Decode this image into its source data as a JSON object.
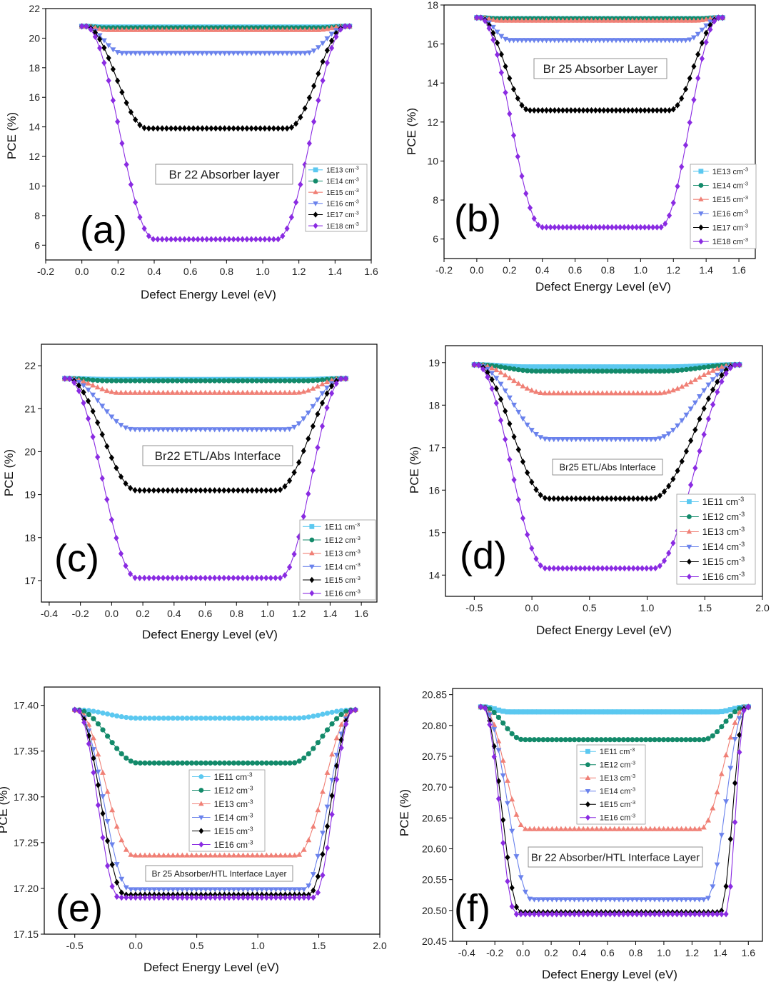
{
  "colors": {
    "s11": "#5bc8f0",
    "s12": "#138a6a",
    "s13": "#f08076",
    "s14": "#6a82ec",
    "s15": "#000000",
    "s16": "#8a2be2"
  },
  "chart_data": [
    {
      "panel": "(a)",
      "type": "line",
      "annotation": "Br 22 Absorber layer",
      "xlabel": "Defect Energy Level (eV)",
      "ylabel": "PCE (%)",
      "xlim": [
        -0.2,
        1.6
      ],
      "ylim": [
        5,
        22
      ],
      "xticks": [
        -0.2,
        0,
        0.2,
        0.4,
        0.6,
        0.8,
        1.0,
        1.2,
        1.4,
        1.6
      ],
      "yticks": [
        6,
        8,
        10,
        12,
        14,
        16,
        18,
        20,
        22
      ],
      "xtick_labels": [
        "-0.2",
        "0.0",
        "0.2",
        "0.4",
        "0.6",
        "0.8",
        "1.0",
        "1.2",
        "1.4",
        "1.6"
      ],
      "ytick_labels": [
        "6",
        "8",
        "10",
        "12",
        "14",
        "16",
        "18",
        "20",
        "22"
      ],
      "x_range": [
        0.0,
        1.48
      ],
      "n_points": 61,
      "flat_start": 0.02,
      "flat_end": 1.46,
      "series": [
        {
          "name": "1E13 cm",
          "marker": "square",
          "color_key": "s11",
          "high": 20.8,
          "low": 20.75,
          "a": 0.12,
          "b": 1.32
        },
        {
          "name": "1E14 cm",
          "marker": "circle",
          "color_key": "s12",
          "high": 20.8,
          "low": 20.7,
          "a": 0.12,
          "b": 1.32
        },
        {
          "name": "1E15 cm",
          "marker": "triangle-up",
          "color_key": "s13",
          "high": 20.8,
          "low": 20.55,
          "a": 0.14,
          "b": 1.3
        },
        {
          "name": "1E16 cm",
          "marker": "triangle-down",
          "color_key": "s14",
          "high": 20.8,
          "low": 19.0,
          "a": 0.22,
          "b": 1.24
        },
        {
          "name": "1E17 cm",
          "marker": "diamond",
          "color_key": "s15",
          "high": 20.8,
          "low": 13.9,
          "a": 0.36,
          "b": 1.14
        },
        {
          "name": "1E18 cm",
          "marker": "diamond",
          "color_key": "s16",
          "high": 20.8,
          "low": 6.4,
          "a": 0.4,
          "b": 1.08
        }
      ]
    },
    {
      "panel": "(b)",
      "type": "line",
      "annotation": "Br 25 Absorber Layer",
      "xlabel": "Defect Energy Level (eV)",
      "ylabel": "PCE (%)",
      "xlim": [
        -0.2,
        1.7
      ],
      "ylim": [
        5,
        18
      ],
      "xticks": [
        -0.2,
        0,
        0.2,
        0.4,
        0.6,
        0.8,
        1.0,
        1.2,
        1.4,
        1.6
      ],
      "yticks": [
        6,
        8,
        10,
        12,
        14,
        16,
        18
      ],
      "xtick_labels": [
        "-0.2",
        "0.0",
        "0.2",
        "0.4",
        "0.6",
        "0.8",
        "1.0",
        "1.2",
        "1.4",
        "1.6"
      ],
      "ytick_labels": [
        "6",
        "8",
        "10",
        "12",
        "14",
        "16",
        "18"
      ],
      "x_range": [
        0.0,
        1.5
      ],
      "n_points": 61,
      "flat_start": 0.02,
      "flat_end": 1.48,
      "series": [
        {
          "name": "1E13 cm",
          "marker": "square",
          "color_key": "s11",
          "high": 17.35,
          "low": 17.3,
          "a": 0.12,
          "b": 1.36
        },
        {
          "name": "1E14 cm",
          "marker": "circle",
          "color_key": "s12",
          "high": 17.35,
          "low": 17.3,
          "a": 0.12,
          "b": 1.36
        },
        {
          "name": "1E15 cm",
          "marker": "triangle-up",
          "color_key": "s13",
          "high": 17.35,
          "low": 17.2,
          "a": 0.14,
          "b": 1.34
        },
        {
          "name": "1E16 cm",
          "marker": "triangle-down",
          "color_key": "s14",
          "high": 17.35,
          "low": 16.2,
          "a": 0.2,
          "b": 1.28
        },
        {
          "name": "1E17 cm",
          "marker": "diamond",
          "color_key": "s15",
          "high": 17.35,
          "low": 12.6,
          "a": 0.32,
          "b": 1.18
        },
        {
          "name": "1E18 cm",
          "marker": "diamond",
          "color_key": "s16",
          "high": 17.35,
          "low": 6.6,
          "a": 0.4,
          "b": 1.12
        }
      ]
    },
    {
      "panel": "(c)",
      "type": "line",
      "annotation": "Br22 ETL/Abs Interface",
      "xlabel": "Defect Energy Level (eV)",
      "ylabel": "PCE (%)",
      "xlim": [
        -0.45,
        1.7
      ],
      "ylim": [
        16.5,
        22.5
      ],
      "xticks": [
        -0.4,
        -0.2,
        0,
        0.2,
        0.4,
        0.6,
        0.8,
        1.0,
        1.2,
        1.4,
        1.6
      ],
      "yticks": [
        17,
        18,
        19,
        20,
        21,
        22
      ],
      "xtick_labels": [
        "-0.4",
        "-0.2",
        "0.0",
        "0.2",
        "0.4",
        "0.6",
        "0.8",
        "1.0",
        "1.2",
        "1.4",
        "1.6"
      ],
      "ytick_labels": [
        "17",
        "18",
        "19",
        "20",
        "21",
        "22"
      ],
      "x_range": [
        -0.3,
        1.5
      ],
      "n_points": 61,
      "flat_start": -0.28,
      "flat_end": 1.48,
      "series": [
        {
          "name": "1E11 cm",
          "marker": "square",
          "color_key": "s11",
          "high": 21.7,
          "low": 21.68,
          "a": -0.02,
          "b": 1.24
        },
        {
          "name": "1E12 cm",
          "marker": "circle",
          "color_key": "s12",
          "high": 21.7,
          "low": 21.65,
          "a": -0.02,
          "b": 1.24
        },
        {
          "name": "1E13 cm",
          "marker": "triangle-up",
          "color_key": "s13",
          "high": 21.7,
          "low": 21.37,
          "a": 0.05,
          "b": 1.18
        },
        {
          "name": "1E14 cm",
          "marker": "triangle-down",
          "color_key": "s14",
          "high": 21.7,
          "low": 20.52,
          "a": 0.14,
          "b": 1.12
        },
        {
          "name": "1E15 cm",
          "marker": "diamond",
          "color_key": "s15",
          "high": 21.7,
          "low": 19.1,
          "a": 0.16,
          "b": 1.06
        },
        {
          "name": "1E16 cm",
          "marker": "diamond",
          "color_key": "s16",
          "high": 21.7,
          "low": 17.06,
          "a": 0.16,
          "b": 1.08
        }
      ]
    },
    {
      "panel": "(d)",
      "type": "line",
      "annotation": "Br25 ETL/Abs Interface",
      "xlabel": "Defect Energy Level (eV)",
      "ylabel": "PCE (%)",
      "xlim": [
        -0.75,
        2.0
      ],
      "ylim": [
        13.5,
        19.4
      ],
      "xticks": [
        -0.5,
        0,
        0.5,
        1.0,
        1.5,
        2.0
      ],
      "yticks": [
        14,
        15,
        16,
        17,
        18,
        19
      ],
      "xtick_labels": [
        "-0.5",
        "0.0",
        "0.5",
        "1.0",
        "1.5",
        "2.0"
      ],
      "ytick_labels": [
        "14",
        "15",
        "16",
        "17",
        "18",
        "19"
      ],
      "x_range": [
        -0.5,
        1.8
      ],
      "n_points": 61,
      "flat_start": -0.48,
      "flat_end": 1.78,
      "series": [
        {
          "name": "1E11 cm",
          "marker": "square",
          "color_key": "s11",
          "high": 18.95,
          "low": 18.9,
          "a": -0.05,
          "b": 1.18
        },
        {
          "name": "1E12 cm",
          "marker": "circle",
          "color_key": "s12",
          "high": 18.95,
          "low": 18.8,
          "a": 0.05,
          "b": 1.12
        },
        {
          "name": "1E13 cm",
          "marker": "triangle-up",
          "color_key": "s13",
          "high": 18.95,
          "low": 18.28,
          "a": 0.12,
          "b": 1.08
        },
        {
          "name": "1E14 cm",
          "marker": "triangle-down",
          "color_key": "s14",
          "high": 18.95,
          "low": 17.2,
          "a": 0.14,
          "b": 1.06
        },
        {
          "name": "1E15 cm",
          "marker": "diamond",
          "color_key": "s15",
          "high": 18.95,
          "low": 15.8,
          "a": 0.14,
          "b": 1.04
        },
        {
          "name": "1E16 cm",
          "marker": "diamond",
          "color_key": "s16",
          "high": 18.95,
          "low": 14.16,
          "a": 0.12,
          "b": 1.06
        }
      ]
    },
    {
      "panel": "(e)",
      "type": "line",
      "annotation": "Br 25 Absorber/HTL Interface Layer",
      "xlabel": "Defect Energy Level (eV)",
      "ylabel": "PCE (%)",
      "xlim": [
        -0.75,
        2.0
      ],
      "ylim": [
        17.15,
        17.42
      ],
      "xticks": [
        -0.5,
        0,
        0.5,
        1.0,
        1.5,
        2.0
      ],
      "yticks": [
        17.15,
        17.2,
        17.25,
        17.3,
        17.35,
        17.4
      ],
      "xtick_labels": [
        "-0.5",
        "0.0",
        "0.5",
        "1.0",
        "1.5",
        "2.0"
      ],
      "ytick_labels": [
        "17.15",
        "17.20",
        "17.25",
        "17.30",
        "17.35",
        "17.40"
      ],
      "x_range": [
        -0.5,
        1.8
      ],
      "n_points": 61,
      "flat_start": -0.48,
      "flat_end": 1.78,
      "series": [
        {
          "name": "1E11 cm",
          "marker": "circle",
          "color_key": "s11",
          "high": 17.395,
          "low": 17.386,
          "a": 0.02,
          "b": 1.3
        },
        {
          "name": "1E12 cm",
          "marker": "circle",
          "color_key": "s12",
          "high": 17.395,
          "low": 17.337,
          "a": 0.02,
          "b": 1.28
        },
        {
          "name": "1E13 cm",
          "marker": "triangle-up",
          "color_key": "s13",
          "high": 17.395,
          "low": 17.236,
          "a": -0.02,
          "b": 1.32
        },
        {
          "name": "1E14 cm",
          "marker": "triangle-down",
          "color_key": "s14",
          "high": 17.395,
          "low": 17.199,
          "a": -0.05,
          "b": 1.38
        },
        {
          "name": "1E15 cm",
          "marker": "diamond",
          "color_key": "s15",
          "high": 17.395,
          "low": 17.193,
          "a": -0.09,
          "b": 1.42
        },
        {
          "name": "1E16 cm",
          "marker": "diamond",
          "color_key": "s16",
          "high": 17.395,
          "low": 17.19,
          "a": -0.14,
          "b": 1.46
        }
      ]
    },
    {
      "panel": "(f)",
      "type": "line",
      "annotation": "Br 22 Absorber/HTL Interface Layer",
      "xlabel": "Defect Energy Level (eV)",
      "ylabel": "PCE (%)",
      "xlim": [
        -0.5,
        1.7
      ],
      "ylim": [
        20.45,
        20.86
      ],
      "xticks": [
        -0.4,
        -0.2,
        0,
        0.2,
        0.4,
        0.6,
        0.8,
        1.0,
        1.2,
        1.4,
        1.6
      ],
      "yticks": [
        20.45,
        20.5,
        20.55,
        20.6,
        20.65,
        20.7,
        20.75,
        20.8,
        20.85
      ],
      "xtick_labels": [
        "-0.4",
        "-0.2",
        "0.0",
        "0.2",
        "0.4",
        "0.6",
        "0.8",
        "1.0",
        "1.2",
        "1.4",
        "1.6"
      ],
      "ytick_labels": [
        "20.45",
        "20.50",
        "20.55",
        "20.60",
        "20.65",
        "20.70",
        "20.75",
        "20.80",
        "20.85"
      ],
      "x_range": [
        -0.3,
        1.6
      ],
      "n_points": 61,
      "flat_start": -0.28,
      "flat_end": 1.58,
      "series": [
        {
          "name": "1E11 cm",
          "marker": "square",
          "color_key": "s11",
          "high": 20.83,
          "low": 20.822,
          "a": -0.1,
          "b": 1.38
        },
        {
          "name": "1E12 cm",
          "marker": "circle",
          "color_key": "s12",
          "high": 20.83,
          "low": 20.777,
          "a": 0.0,
          "b": 1.28
        },
        {
          "name": "1E13 cm",
          "marker": "triangle-up",
          "color_key": "s13",
          "high": 20.83,
          "low": 20.632,
          "a": 0.02,
          "b": 1.26
        },
        {
          "name": "1E14 cm",
          "marker": "triangle-down",
          "color_key": "s14",
          "high": 20.83,
          "low": 20.518,
          "a": 0.06,
          "b": 1.3
        },
        {
          "name": "1E15 cm",
          "marker": "diamond",
          "color_key": "s15",
          "high": 20.83,
          "low": 20.497,
          "a": -0.02,
          "b": 1.4
        },
        {
          "name": "1E16 cm",
          "marker": "diamond",
          "color_key": "s16",
          "high": 20.83,
          "low": 20.494,
          "a": -0.05,
          "b": 1.44
        }
      ]
    }
  ]
}
